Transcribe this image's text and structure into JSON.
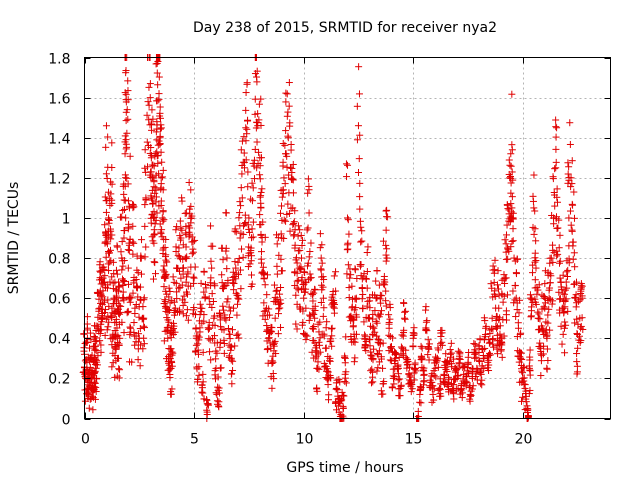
{
  "chart_data": {
    "type": "scatter",
    "title": "Day 238 of 2015, SRMTID for receiver nya2",
    "xlabel": "GPS time / hours",
    "ylabel": "SRMTID / TECUs",
    "xlim": [
      0,
      24
    ],
    "ylim": [
      0,
      1.8
    ],
    "xticks": [
      0,
      5,
      10,
      15,
      20
    ],
    "xtick_labels": [
      "0",
      "5",
      "10",
      "15",
      "20"
    ],
    "yticks": [
      0,
      0.2,
      0.4,
      0.6,
      0.8,
      1,
      1.2,
      1.4,
      1.6,
      1.8
    ],
    "ytick_labels": [
      "0",
      "0.2",
      "0.4",
      "0.6",
      "0.8",
      "1",
      "1.2",
      "1.4",
      "1.6",
      "1.8"
    ],
    "grid": true,
    "marker": "+",
    "color": "#e00000",
    "data_coverage_hours": [
      0,
      22.7
    ],
    "series": [
      {
        "name": "nya2",
        "points": [
          [
            0.0,
            0.32
          ],
          [
            0.05,
            0.2
          ],
          [
            0.1,
            0.38
          ],
          [
            0.15,
            0.24
          ],
          [
            0.2,
            0.15
          ],
          [
            0.25,
            0.3
          ],
          [
            0.3,
            0.18
          ],
          [
            0.35,
            0.22
          ],
          [
            0.4,
            0.14
          ],
          [
            0.45,
            0.28
          ],
          [
            0.5,
            0.36
          ],
          [
            0.55,
            0.2
          ],
          [
            0.6,
            0.46
          ],
          [
            0.7,
            0.55
          ],
          [
            0.75,
            0.62
          ],
          [
            0.8,
            0.5
          ],
          [
            0.85,
            0.7
          ],
          [
            0.9,
            0.58
          ],
          [
            0.95,
            0.88
          ],
          [
            1.0,
            1.22
          ],
          [
            1.05,
            0.65
          ],
          [
            1.1,
            1.0
          ],
          [
            1.15,
            0.78
          ],
          [
            1.2,
            1.12
          ],
          [
            1.25,
            0.55
          ],
          [
            1.3,
            0.42
          ],
          [
            1.35,
            0.6
          ],
          [
            1.4,
            0.35
          ],
          [
            1.45,
            0.48
          ],
          [
            1.5,
            0.72
          ],
          [
            1.55,
            0.3
          ],
          [
            1.6,
            0.52
          ],
          [
            1.7,
            0.8
          ],
          [
            1.75,
            0.6
          ],
          [
            1.8,
            0.9
          ],
          [
            1.85,
            1.32
          ],
          [
            1.9,
            1.59
          ],
          [
            1.95,
            1.54
          ],
          [
            2.0,
            0.75
          ],
          [
            2.05,
            1.05
          ],
          [
            2.1,
            0.45
          ],
          [
            2.2,
            0.88
          ],
          [
            2.3,
            0.55
          ],
          [
            2.4,
            0.66
          ],
          [
            2.5,
            0.4
          ],
          [
            2.6,
            0.72
          ],
          [
            2.7,
            0.5
          ],
          [
            2.8,
            1.1
          ],
          [
            2.9,
            1.58
          ],
          [
            3.0,
            1.6
          ],
          [
            3.05,
            1.3
          ],
          [
            3.1,
            1.2
          ],
          [
            3.15,
            1.0
          ],
          [
            3.2,
            0.92
          ],
          [
            3.25,
            1.15
          ],
          [
            3.3,
            1.48
          ],
          [
            3.35,
            1.78
          ],
          [
            3.4,
            1.62
          ],
          [
            3.45,
            1.4
          ],
          [
            3.5,
            1.2
          ],
          [
            3.55,
            1.0
          ],
          [
            3.6,
            0.85
          ],
          [
            3.65,
            0.7
          ],
          [
            3.7,
            0.55
          ],
          [
            3.75,
            0.62
          ],
          [
            3.8,
            0.4
          ],
          [
            3.85,
            0.48
          ],
          [
            3.9,
            0.3
          ],
          [
            3.95,
            0.25
          ],
          [
            4.0,
            0.44
          ],
          [
            4.1,
            0.58
          ],
          [
            4.2,
            0.75
          ],
          [
            4.3,
            0.65
          ],
          [
            4.4,
            0.9
          ],
          [
            4.5,
            0.72
          ],
          [
            4.6,
            0.8
          ],
          [
            4.7,
            0.62
          ],
          [
            4.8,
            0.95
          ],
          [
            4.9,
            0.88
          ],
          [
            5.0,
            0.7
          ],
          [
            5.1,
            0.4
          ],
          [
            5.2,
            0.32
          ],
          [
            5.3,
            0.55
          ],
          [
            5.4,
            0.22
          ],
          [
            5.5,
            0.6
          ],
          [
            5.6,
            0.02
          ],
          [
            5.7,
            0.45
          ],
          [
            5.8,
            0.75
          ],
          [
            5.9,
            0.5
          ],
          [
            6.0,
            0.25
          ],
          [
            6.1,
            0.14
          ],
          [
            6.2,
            0.38
          ],
          [
            6.3,
            0.65
          ],
          [
            6.4,
            0.5
          ],
          [
            6.5,
            0.8
          ],
          [
            6.6,
            0.42
          ],
          [
            6.7,
            0.3
          ],
          [
            6.8,
            0.55
          ],
          [
            6.9,
            0.75
          ],
          [
            7.0,
            0.6
          ],
          [
            7.1,
            0.9
          ],
          [
            7.2,
            1.1
          ],
          [
            7.3,
            1.25
          ],
          [
            7.4,
            1.42
          ],
          [
            7.5,
            1.0
          ],
          [
            7.6,
            0.85
          ],
          [
            7.7,
            1.15
          ],
          [
            7.8,
            1.72
          ],
          [
            7.9,
            1.52
          ],
          [
            8.0,
            1.3
          ],
          [
            8.05,
            1.05
          ],
          [
            8.1,
            0.88
          ],
          [
            8.2,
            0.7
          ],
          [
            8.3,
            0.55
          ],
          [
            8.4,
            0.4
          ],
          [
            8.5,
            0.35
          ],
          [
            8.6,
            0.28
          ],
          [
            8.7,
            0.5
          ],
          [
            8.8,
            0.72
          ],
          [
            8.9,
            0.62
          ],
          [
            9.0,
            0.9
          ],
          [
            9.1,
            1.2
          ],
          [
            9.2,
            1.32
          ],
          [
            9.3,
            1.4
          ],
          [
            9.4,
            1.25
          ],
          [
            9.5,
            1.05
          ],
          [
            9.6,
            0.85
          ],
          [
            9.7,
            0.65
          ],
          [
            9.8,
            0.75
          ],
          [
            9.9,
            0.8
          ],
          [
            10.0,
            0.6
          ],
          [
            10.1,
            0.55
          ],
          [
            10.2,
            0.95
          ],
          [
            10.3,
            0.7
          ],
          [
            10.4,
            0.45
          ],
          [
            10.5,
            0.5
          ],
          [
            10.6,
            0.25
          ],
          [
            10.7,
            0.38
          ],
          [
            10.8,
            0.8
          ],
          [
            10.9,
            0.6
          ],
          [
            11.0,
            0.35
          ],
          [
            11.1,
            0.2
          ],
          [
            11.2,
            0.3
          ],
          [
            11.3,
            0.45
          ],
          [
            11.4,
            0.55
          ],
          [
            11.5,
            0.15
          ],
          [
            11.6,
            0.1
          ],
          [
            11.7,
            0.02
          ],
          [
            11.8,
            0.05
          ],
          [
            11.9,
            0.3
          ],
          [
            12.0,
            1.0
          ],
          [
            12.1,
            0.7
          ],
          [
            12.2,
            0.5
          ],
          [
            12.3,
            0.42
          ],
          [
            12.4,
            0.6
          ],
          [
            12.5,
            1.46
          ],
          [
            12.6,
            0.88
          ],
          [
            12.7,
            0.55
          ],
          [
            12.8,
            0.4
          ],
          [
            12.9,
            0.65
          ],
          [
            13.0,
            0.5
          ],
          [
            13.1,
            0.3
          ],
          [
            13.2,
            0.45
          ],
          [
            13.3,
            0.6
          ],
          [
            13.4,
            0.38
          ],
          [
            13.5,
            0.52
          ],
          [
            13.6,
            0.25
          ],
          [
            13.7,
            0.68
          ],
          [
            13.8,
            0.8
          ],
          [
            13.9,
            0.45
          ],
          [
            14.0,
            0.35
          ],
          [
            14.1,
            0.2
          ],
          [
            14.2,
            0.3
          ],
          [
            14.3,
            0.25
          ],
          [
            14.4,
            0.15
          ],
          [
            14.5,
            0.35
          ],
          [
            14.6,
            0.5
          ],
          [
            14.7,
            0.28
          ],
          [
            14.8,
            0.22
          ],
          [
            14.9,
            0.18
          ],
          [
            15.0,
            0.4
          ],
          [
            15.1,
            0.25
          ],
          [
            15.2,
            0.0
          ],
          [
            15.3,
            0.12
          ],
          [
            15.4,
            0.3
          ],
          [
            15.5,
            0.22
          ],
          [
            15.6,
            0.48
          ],
          [
            15.7,
            0.35
          ],
          [
            15.8,
            0.18
          ],
          [
            15.9,
            0.12
          ],
          [
            16.0,
            0.25
          ],
          [
            16.1,
            0.3
          ],
          [
            16.2,
            0.15
          ],
          [
            16.3,
            0.38
          ],
          [
            16.4,
            0.22
          ],
          [
            16.5,
            0.28
          ],
          [
            16.6,
            0.18
          ],
          [
            16.7,
            0.32
          ],
          [
            16.8,
            0.14
          ],
          [
            16.9,
            0.25
          ],
          [
            17.0,
            0.2
          ],
          [
            17.1,
            0.3
          ],
          [
            17.2,
            0.15
          ],
          [
            17.3,
            0.22
          ],
          [
            17.4,
            0.18
          ],
          [
            17.5,
            0.28
          ],
          [
            17.6,
            0.12
          ],
          [
            17.7,
            0.2
          ],
          [
            17.8,
            0.32
          ],
          [
            17.9,
            0.25
          ],
          [
            18.0,
            0.35
          ],
          [
            18.1,
            0.22
          ],
          [
            18.2,
            0.3
          ],
          [
            18.3,
            0.45
          ],
          [
            18.4,
            0.28
          ],
          [
            18.5,
            0.38
          ],
          [
            18.6,
            0.5
          ],
          [
            18.7,
            0.62
          ],
          [
            18.8,
            0.45
          ],
          [
            18.9,
            0.55
          ],
          [
            19.0,
            0.4
          ],
          [
            19.1,
            0.58
          ],
          [
            19.2,
            0.7
          ],
          [
            19.3,
            0.85
          ],
          [
            19.4,
            1.2
          ],
          [
            19.45,
            1.32
          ],
          [
            19.5,
            1.05
          ],
          [
            19.6,
            0.8
          ],
          [
            19.7,
            0.6
          ],
          [
            19.8,
            0.45
          ],
          [
            19.9,
            0.3
          ],
          [
            20.0,
            0.2
          ],
          [
            20.1,
            0.15
          ],
          [
            20.2,
            0.05
          ],
          [
            20.3,
            0.25
          ],
          [
            20.4,
            0.6
          ],
          [
            20.5,
            1.05
          ],
          [
            20.6,
            0.75
          ],
          [
            20.7,
            0.5
          ],
          [
            20.8,
            0.35
          ],
          [
            20.9,
            0.45
          ],
          [
            21.0,
            0.55
          ],
          [
            21.1,
            0.4
          ],
          [
            21.2,
            0.6
          ],
          [
            21.3,
            0.8
          ],
          [
            21.4,
            1.0
          ],
          [
            21.5,
            1.25
          ],
          [
            21.6,
            0.95
          ],
          [
            21.7,
            0.7
          ],
          [
            21.8,
            0.55
          ],
          [
            21.9,
            0.45
          ],
          [
            22.0,
            0.65
          ],
          [
            22.1,
            1.0
          ],
          [
            22.2,
            1.2
          ],
          [
            22.3,
            0.88
          ],
          [
            22.4,
            0.6
          ],
          [
            22.5,
            0.35
          ],
          [
            22.6,
            0.5
          ],
          [
            22.7,
            0.6
          ]
        ]
      }
    ]
  }
}
